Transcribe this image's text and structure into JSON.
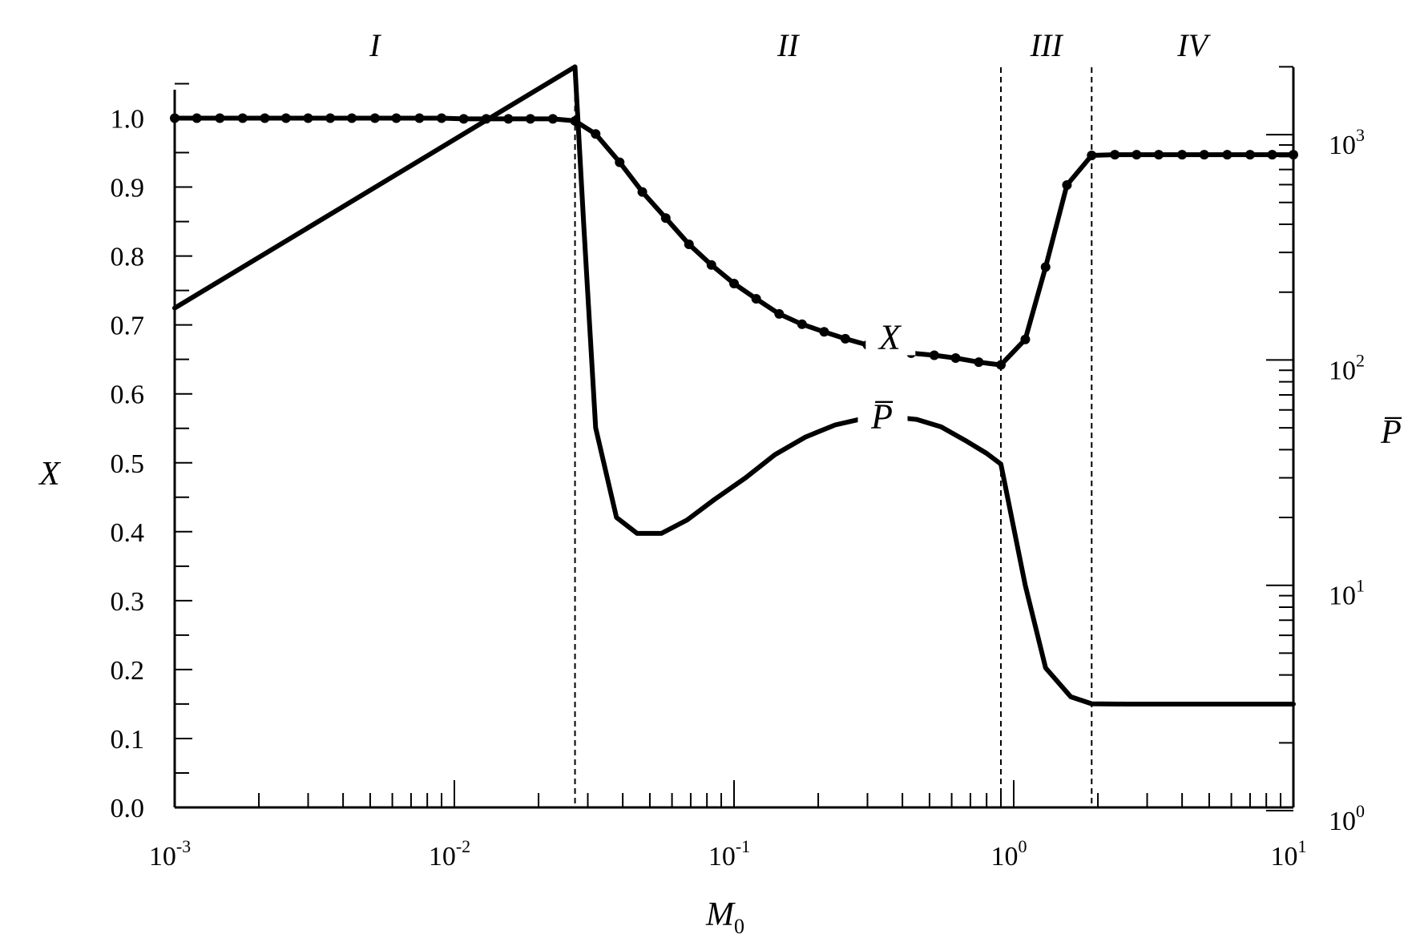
{
  "chart_data": {
    "type": "line",
    "title": "",
    "xlabel": "M",
    "xlabel_subscript": "0",
    "ylabel_left": "X",
    "ylabel_right": "P̅",
    "x_scale": "log",
    "xlim": [
      0.001,
      10
    ],
    "ylim_left": [
      0,
      1.05
    ],
    "ylim_right": [
      1,
      2000
    ],
    "y_right_scale": "log",
    "x_ticks": [
      {
        "base": "10",
        "exp": "-3"
      },
      {
        "base": "10",
        "exp": "-2"
      },
      {
        "base": "10",
        "exp": "-1"
      },
      {
        "base": "10",
        "exp": "0"
      },
      {
        "base": "10",
        "exp": "1"
      }
    ],
    "y_left_ticks": [
      "0.0",
      "0.1",
      "0.2",
      "0.3",
      "0.4",
      "0.5",
      "0.6",
      "0.7",
      "0.8",
      "0.9",
      "1.0"
    ],
    "y_right_ticks": [
      {
        "base": "10",
        "exp": "0"
      },
      {
        "base": "10",
        "exp": "1"
      },
      {
        "base": "10",
        "exp": "2"
      },
      {
        "base": "10",
        "exp": "3"
      }
    ],
    "regions": [
      {
        "label": "I",
        "x_from": 0.001,
        "x_to": 0.027
      },
      {
        "label": "II",
        "x_from": 0.027,
        "x_to": 0.9
      },
      {
        "label": "III",
        "x_from": 0.9,
        "x_to": 1.9
      },
      {
        "label": "IV",
        "x_from": 1.9,
        "x_to": 10
      }
    ],
    "boundaries": [
      0.027,
      0.9,
      1.9
    ],
    "series": [
      {
        "name": "X",
        "axis": "left",
        "markers": true,
        "x": [
          0.001,
          0.0012,
          0.00145,
          0.00175,
          0.0021,
          0.0025,
          0.003,
          0.0036,
          0.0043,
          0.0052,
          0.0062,
          0.0075,
          0.009,
          0.0108,
          0.013,
          0.0156,
          0.0187,
          0.0225,
          0.027,
          0.032,
          0.039,
          0.047,
          0.057,
          0.069,
          0.083,
          0.1,
          0.12,
          0.145,
          0.175,
          0.21,
          0.25,
          0.3,
          0.36,
          0.43,
          0.52,
          0.62,
          0.75,
          0.9,
          1.1,
          1.3,
          1.55,
          1.9,
          2.3,
          2.75,
          3.3,
          4.0,
          4.8,
          5.8,
          7.0,
          8.4,
          10
        ],
        "y": [
          1.0,
          1.0,
          1.0,
          1.0,
          1.0,
          1.0,
          1.0,
          1.0,
          1.0,
          1.0,
          1.0,
          1.0,
          1.0,
          0.999,
          0.999,
          0.999,
          0.999,
          0.999,
          0.996,
          0.977,
          0.936,
          0.893,
          0.855,
          0.817,
          0.787,
          0.76,
          0.738,
          0.716,
          0.701,
          0.69,
          0.68,
          0.671,
          0.664,
          0.659,
          0.656,
          0.652,
          0.646,
          0.642,
          0.679,
          0.784,
          0.903,
          0.946,
          0.947,
          0.947,
          0.947,
          0.947,
          0.947,
          0.947,
          0.947,
          0.947,
          0.947
        ]
      },
      {
        "name": "P̅",
        "axis": "right",
        "markers": false,
        "x": [
          0.001,
          0.027,
          0.029,
          0.032,
          0.038,
          0.045,
          0.055,
          0.068,
          0.085,
          0.11,
          0.14,
          0.18,
          0.23,
          0.29,
          0.36,
          0.45,
          0.55,
          0.67,
          0.8,
          0.9,
          1.1,
          1.3,
          1.6,
          1.9,
          2.5,
          4,
          6,
          10
        ],
        "y": [
          170,
          2000,
          400,
          50,
          20,
          17,
          17,
          19.5,
          24,
          30,
          38,
          45.5,
          51.5,
          55,
          56,
          54.5,
          50.5,
          44,
          38.5,
          34.5,
          10,
          4.3,
          3.2,
          2.98,
          2.97,
          2.97,
          2.97,
          2.97
        ]
      }
    ],
    "curve_labels": [
      {
        "text": "X",
        "x": 0.32,
        "y_left": 0.67
      },
      {
        "text": "P̅",
        "x": 0.3,
        "y_left": 0.555
      }
    ],
    "grid": false,
    "legend": "none"
  }
}
